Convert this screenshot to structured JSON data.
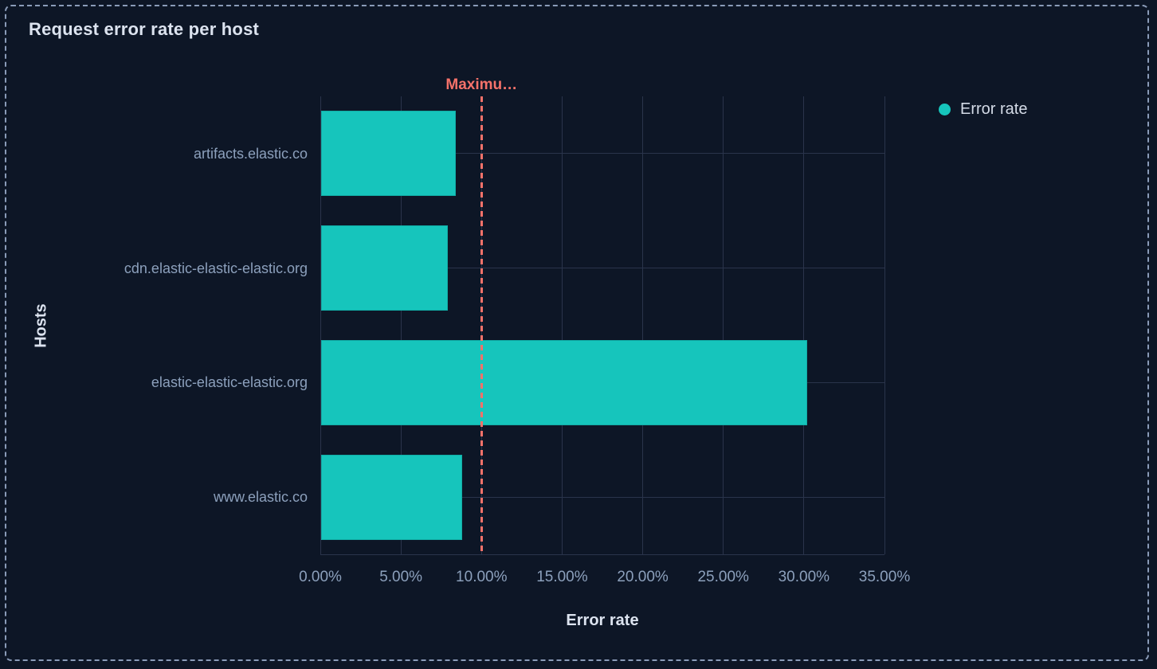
{
  "panel": {
    "title": "Request error rate per host"
  },
  "legend": {
    "items": [
      {
        "label": "Error rate",
        "color": "#16C5BC"
      }
    ]
  },
  "chart_data": {
    "type": "bar",
    "orientation": "horizontal",
    "title": "Request error rate per host",
    "categories": [
      "artifacts.elastic.co",
      "cdn.elastic-elastic-elastic.org",
      "elastic-elastic-elastic.org",
      "www.elastic.co"
    ],
    "series": [
      {
        "name": "Error rate",
        "values": [
          8.4,
          7.9,
          30.2,
          8.8
        ],
        "color": "#16C5BC"
      }
    ],
    "value_unit": "%",
    "xlabel": "Error rate",
    "ylabel": "Hosts",
    "xlim": [
      0,
      35
    ],
    "x_tick_values": [
      0,
      5,
      10,
      15,
      20,
      25,
      30,
      35
    ],
    "x_tick_labels": [
      "0.00%",
      "5.00%",
      "10.00%",
      "15.00%",
      "20.00%",
      "25.00%",
      "30.00%",
      "35.00%"
    ],
    "grid": true,
    "legend_position": "top-right",
    "annotation": {
      "label": "Maximu…",
      "value": 10,
      "color": "#F6726A",
      "style": "dashed"
    }
  },
  "colors": {
    "background": "#0D1626",
    "panel_border": "#8A9BB8",
    "bar": "#16C5BC",
    "annotation": "#F6726A",
    "text_bright": "#DCE3EF",
    "text_muted": "#8CA0BC",
    "gridline": "#2A344B"
  }
}
